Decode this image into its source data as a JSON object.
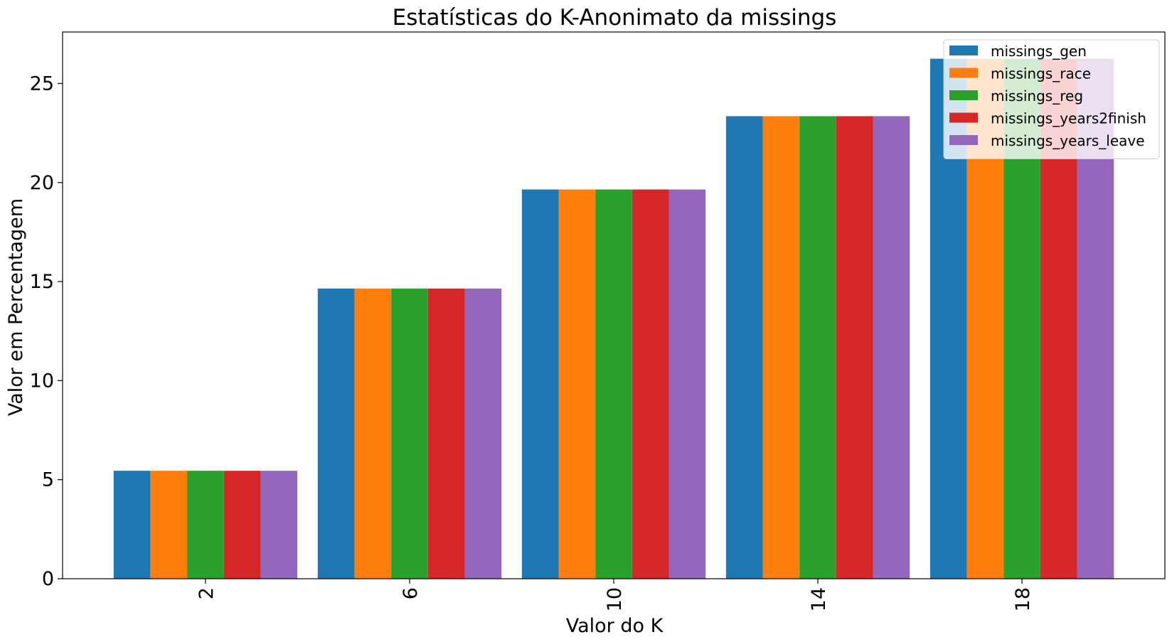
{
  "chart_data": {
    "type": "bar",
    "title": "Estatísticas do K-Anonimato da missings",
    "xlabel": "Valor do K",
    "ylabel": "Valor em Percentagem",
    "categories": [
      "2",
      "6",
      "10",
      "14",
      "18"
    ],
    "series": [
      {
        "name": "missings_gen",
        "color": "#1f77b4",
        "values": [
          5.45,
          14.65,
          19.65,
          23.35,
          26.25
        ]
      },
      {
        "name": "missings_race",
        "color": "#ff7f0e",
        "values": [
          5.45,
          14.65,
          19.65,
          23.35,
          26.25
        ]
      },
      {
        "name": "missings_reg",
        "color": "#2ca02c",
        "values": [
          5.45,
          14.65,
          19.65,
          23.35,
          26.25
        ]
      },
      {
        "name": "missings_years2finish",
        "color": "#d62728",
        "values": [
          5.45,
          14.65,
          19.65,
          23.35,
          26.25
        ]
      },
      {
        "name": "missings_years_leave",
        "color": "#9467bd",
        "values": [
          5.45,
          14.65,
          19.65,
          23.35,
          26.25
        ]
      }
    ],
    "yticks": [
      "0",
      "5",
      "10",
      "15",
      "20",
      "25"
    ],
    "ylim": [
      0,
      27.6
    ],
    "grid": false,
    "legend_position": "top-right"
  }
}
